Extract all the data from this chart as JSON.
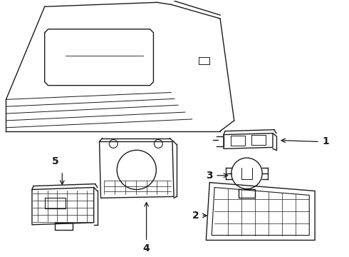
{
  "background_color": "#ffffff",
  "line_color": "#1a1a1a",
  "line_width": 1.0,
  "fig_width": 4.9,
  "fig_height": 3.6,
  "dpi": 100
}
